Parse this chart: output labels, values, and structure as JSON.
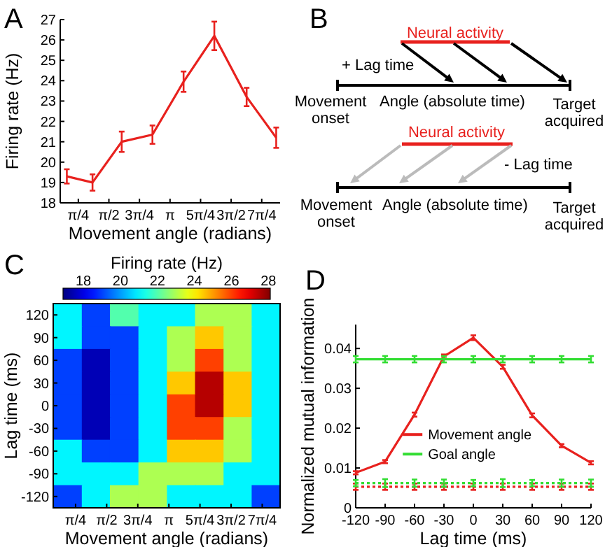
{
  "chart_data": [
    {
      "type": "line",
      "title": "A",
      "xlabel": "Movement angle (radians)",
      "ylabel": "Firing rate (Hz)",
      "xlim": [
        0.32,
        5.97
      ],
      "ylim": [
        18,
        27
      ],
      "xticks": [
        {
          "value": 0.785,
          "label": "π/4"
        },
        {
          "value": 1.571,
          "label": "π/2"
        },
        {
          "value": 2.356,
          "label": "3π/4"
        },
        {
          "value": 3.142,
          "label": "π"
        },
        {
          "value": 3.927,
          "label": "5π/4"
        },
        {
          "value": 4.712,
          "label": "3π/2"
        },
        {
          "value": 5.498,
          "label": "7π/4"
        }
      ],
      "yticks": [
        18,
        19,
        20,
        21,
        22,
        23,
        24,
        25,
        26,
        27
      ],
      "grid": false,
      "marker": "none",
      "line_style": "solid",
      "x": [
        0.49,
        1.15,
        1.9,
        2.69,
        3.49,
        4.28,
        5.11,
        5.87
      ],
      "series": [
        {
          "color": "#e8211e",
          "values": [
            19.3,
            19.0,
            21.0,
            21.35,
            23.95,
            26.2,
            23.2,
            21.2
          ],
          "errors": [
            0.35,
            0.4,
            0.5,
            0.45,
            0.5,
            0.7,
            0.45,
            0.5
          ]
        }
      ]
    },
    {
      "type": "other",
      "title": "B",
      "annotations": [
        "Neural activity",
        "+ Lag time",
        "Movement onset",
        "Angle (absolute time)",
        "Target acquired",
        "Neural activity",
        "- Lag time",
        "Movement onset",
        "Angle (absolute time)",
        "Target acquired"
      ]
    },
    {
      "type": "heatmap",
      "title": "C",
      "xlabel": "Movement angle (radians)",
      "ylabel": "Lag time (ms)",
      "clabel": "Firing rate (Hz)",
      "clim": [
        16.9,
        28.1
      ],
      "cticks": [
        18,
        20,
        22,
        24,
        26,
        28
      ],
      "xlim": [
        0.22,
        5.95
      ],
      "xticks": [
        {
          "value": 0.785,
          "label": "π/4"
        },
        {
          "value": 1.571,
          "label": "π/2"
        },
        {
          "value": 2.356,
          "label": "3π/4"
        },
        {
          "value": 3.142,
          "label": "π"
        },
        {
          "value": 3.927,
          "label": "5π/4"
        },
        {
          "value": 4.712,
          "label": "3π/2"
        },
        {
          "value": 5.498,
          "label": "7π/4"
        }
      ],
      "x": [
        0.58,
        1.3,
        2.01,
        2.73,
        3.45,
        4.16,
        4.88,
        5.59
      ],
      "y_categories": [
        "120",
        "90",
        "60",
        "30",
        "0",
        "-30",
        "-60",
        "-90",
        "-120"
      ],
      "cells": [
        [
          21,
          19,
          22,
          21,
          21,
          23,
          23,
          21
        ],
        [
          21,
          19,
          19,
          21,
          23,
          24.5,
          23,
          21
        ],
        [
          19,
          17.5,
          19,
          21,
          23,
          26,
          23,
          21
        ],
        [
          19,
          17.5,
          19,
          21,
          24.5,
          27.5,
          24.5,
          21
        ],
        [
          19,
          17.5,
          19,
          21,
          26,
          27.5,
          24.5,
          21
        ],
        [
          19,
          17.5,
          19,
          21,
          26,
          26,
          23,
          21
        ],
        [
          21,
          19,
          19,
          21,
          24.5,
          24.5,
          23,
          21
        ],
        [
          21,
          21,
          21,
          23,
          23,
          23,
          21,
          21
        ],
        [
          19,
          21,
          23,
          23,
          21,
          21,
          21,
          19
        ]
      ]
    },
    {
      "type": "line",
      "title": "D",
      "xlabel": "Lag time (ms)",
      "ylabel": "Normalized mutual information",
      "xlim": [
        -120,
        120
      ],
      "ylim": [
        0,
        0.046
      ],
      "xticks": [
        -120,
        -90,
        -60,
        -30,
        0,
        30,
        60,
        90,
        120
      ],
      "yticks": [
        0,
        0.01,
        0.02,
        0.03,
        0.04
      ],
      "grid": false,
      "marker": "none",
      "legend": "center",
      "x": [
        -120,
        -90,
        -60,
        -30,
        0,
        30,
        60,
        90,
        120
      ],
      "series": [
        {
          "color": "#e8211e",
          "line_style": "dotted",
          "values": [
            0.0053,
            0.0053,
            0.0053,
            0.0053,
            0.0053,
            0.0053,
            0.0053,
            0.0053,
            0.0053
          ],
          "errors": [
            0.0008,
            0.0008,
            0.0008,
            0.0008,
            0.0008,
            0.0008,
            0.0008,
            0.0008,
            0.0008
          ]
        },
        {
          "color": "#33dd33",
          "line_style": "dotted",
          "values": [
            0.0062,
            0.0062,
            0.0062,
            0.0062,
            0.0062,
            0.0062,
            0.0062,
            0.0062,
            0.0062
          ],
          "errors": [
            0.0008,
            0.001,
            0.0009,
            0.0009,
            0.0008,
            0.001,
            0.0008,
            0.0009,
            0.0009
          ]
        },
        {
          "name": "Movement angle",
          "color": "#e8211e",
          "line_style": "solid",
          "values": [
            0.0088,
            0.0116,
            0.0234,
            0.038,
            0.0427,
            0.0354,
            0.0232,
            0.0156,
            0.0113
          ],
          "errors": [
            0.0004,
            0.0004,
            0.0005,
            0.0005,
            0.0006,
            0.0005,
            0.0005,
            0.0004,
            0.0004
          ]
        },
        {
          "name": "Goal angle",
          "color": "#33dd33",
          "line_style": "solid",
          "values": [
            0.0373,
            0.0373,
            0.0373,
            0.0373,
            0.0373,
            0.0373,
            0.0373,
            0.0373,
            0.0373
          ],
          "errors": [
            0.0008,
            0.0008,
            0.0008,
            0.0008,
            0.0008,
            0.0008,
            0.0008,
            0.0008,
            0.0008
          ]
        }
      ]
    }
  ]
}
